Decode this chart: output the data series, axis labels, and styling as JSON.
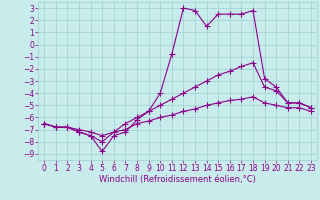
{
  "background_color": "#c8ecec",
  "line_color": "#8b008b",
  "marker": "+",
  "markersize": 4,
  "linewidth": 0.8,
  "xlabel": "Windchill (Refroidissement éolien,°C)",
  "xlabel_fontsize": 6,
  "tick_fontsize": 5.5,
  "xlim": [
    -0.5,
    23.5
  ],
  "ylim": [
    -9.5,
    3.5
  ],
  "yticks": [
    3,
    2,
    1,
    0,
    -1,
    -2,
    -3,
    -4,
    -5,
    -6,
    -7,
    -8,
    -9
  ],
  "xticks": [
    0,
    1,
    2,
    3,
    4,
    5,
    6,
    7,
    8,
    9,
    10,
    11,
    12,
    13,
    14,
    15,
    16,
    17,
    18,
    19,
    20,
    21,
    22,
    23
  ],
  "series": [
    {
      "x": [
        0,
        1,
        2,
        3,
        4,
        5,
        6,
        7,
        8,
        9,
        10,
        11,
        12,
        13,
        14,
        15,
        16,
        17,
        18,
        19,
        20,
        21,
        22,
        23
      ],
      "y": [
        -6.5,
        -6.8,
        -6.8,
        -7.0,
        -7.2,
        -7.5,
        -7.2,
        -7.0,
        -6.5,
        -6.3,
        -6.0,
        -5.8,
        -5.5,
        -5.3,
        -5.0,
        -4.8,
        -4.6,
        -4.5,
        -4.3,
        -4.8,
        -5.0,
        -5.2,
        -5.2,
        -5.5
      ]
    },
    {
      "x": [
        0,
        1,
        2,
        3,
        4,
        5,
        6,
        7,
        8,
        9,
        10,
        11,
        12,
        13,
        14,
        15,
        16,
        17,
        18,
        19,
        20,
        21,
        22,
        23
      ],
      "y": [
        -6.5,
        -6.8,
        -6.8,
        -7.2,
        -7.5,
        -8.0,
        -7.2,
        -6.5,
        -6.0,
        -5.5,
        -5.0,
        -4.5,
        -4.0,
        -3.5,
        -3.0,
        -2.5,
        -2.2,
        -1.8,
        -1.5,
        -3.5,
        -3.8,
        -4.8,
        -4.8,
        -5.2
      ]
    },
    {
      "x": [
        0,
        1,
        2,
        3,
        4,
        5,
        6,
        7,
        8,
        9,
        10,
        11,
        12,
        13,
        14,
        15,
        16,
        17,
        18,
        19,
        20,
        21,
        22,
        23
      ],
      "y": [
        -6.5,
        -6.8,
        -6.8,
        -7.2,
        -7.5,
        -8.8,
        -7.5,
        -7.2,
        -6.2,
        -5.5,
        -4.0,
        -0.8,
        3.0,
        2.8,
        1.5,
        2.5,
        2.5,
        2.5,
        2.8,
        -2.8,
        -3.5,
        -4.8,
        -4.8,
        -5.2
      ]
    }
  ]
}
